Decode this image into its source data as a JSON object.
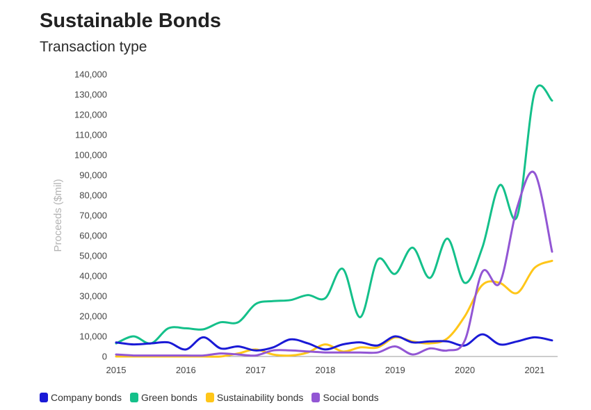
{
  "chart_data": {
    "type": "line",
    "title": "Sustainable Bonds",
    "subtitle": "Transaction type",
    "xlabel": "",
    "ylabel": "Proceeds ($mil)",
    "xlim": [
      2015,
      2021.28
    ],
    "ylim": [
      0,
      140000
    ],
    "x_ticks": [
      "2015",
      "2016",
      "2017",
      "2018",
      "2019",
      "2020",
      "2021"
    ],
    "y_ticks": [
      "0",
      "10,000",
      "20,000",
      "30,000",
      "40,000",
      "50,000",
      "60,000",
      "70,000",
      "80,000",
      "90,000",
      "100,000",
      "110,000",
      "120,000",
      "130,000",
      "140,000"
    ],
    "x": [
      2015.0,
      2015.25,
      2015.5,
      2015.75,
      2016.0,
      2016.25,
      2016.5,
      2016.75,
      2017.0,
      2017.25,
      2017.5,
      2017.75,
      2018.0,
      2018.25,
      2018.5,
      2018.75,
      2019.0,
      2019.25,
      2019.5,
      2019.75,
      2020.0,
      2020.25,
      2020.5,
      2020.75,
      2021.0,
      2021.25
    ],
    "series": [
      {
        "name": "Company bonds",
        "color": "#1a1ad6",
        "values": [
          7000,
          6000,
          6500,
          7000,
          3500,
          9500,
          4000,
          5000,
          3000,
          4500,
          8500,
          6500,
          3500,
          6000,
          7000,
          5500,
          10000,
          7000,
          7500,
          7500,
          5500,
          11000,
          6000,
          7500,
          9500,
          8000
        ]
      },
      {
        "name": "Green bonds",
        "color": "#14c08a",
        "values": [
          6500,
          10000,
          6500,
          14000,
          14000,
          13500,
          17000,
          17000,
          26000,
          27500,
          28000,
          30500,
          29000,
          43500,
          19500,
          48000,
          41000,
          54000,
          39000,
          58500,
          36500,
          54000,
          85000,
          69500,
          131000,
          127000
        ]
      },
      {
        "name": "Sustainability bonds",
        "color": "#ffc619",
        "values": [
          0,
          0,
          0,
          0,
          0,
          0,
          0,
          1500,
          3500,
          1000,
          500,
          2000,
          6000,
          2500,
          4500,
          4500,
          9500,
          7500,
          6500,
          9000,
          20000,
          35500,
          36500,
          31500,
          44000,
          47500
        ]
      },
      {
        "name": "Social bonds",
        "color": "#9256d4",
        "values": [
          1000,
          500,
          500,
          500,
          500,
          500,
          1500,
          1000,
          500,
          3000,
          3000,
          2500,
          2000,
          2000,
          2000,
          2000,
          5000,
          1000,
          4000,
          3000,
          8000,
          42000,
          36500,
          74000,
          91000,
          52000
        ]
      }
    ]
  }
}
